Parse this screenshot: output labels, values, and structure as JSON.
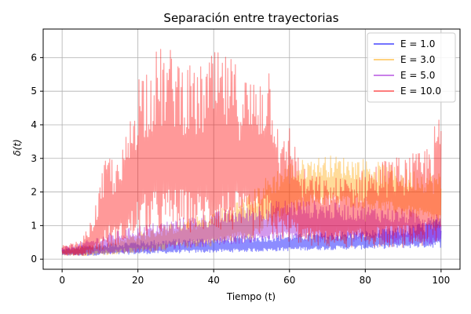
{
  "chart_data": {
    "type": "line",
    "title": "Separación entre trayectorias",
    "xlabel": "Tiempo (t)",
    "ylabel": "δ(t)",
    "xlim": [
      -5,
      105
    ],
    "ylim": [
      -0.3,
      6.85
    ],
    "xticks": [
      0,
      20,
      40,
      60,
      80,
      100
    ],
    "yticks": [
      0,
      1,
      2,
      3,
      4,
      5,
      6
    ],
    "grid": true,
    "legend_position": "top-right",
    "series": [
      {
        "name": "E = 1.0",
        "color": "#0000ff",
        "opacity": 0.45,
        "envelope": {
          "t": [
            0,
            5,
            10,
            20,
            30,
            40,
            50,
            60,
            70,
            80,
            90,
            100
          ],
          "lower": [
            0.12,
            0.1,
            0.12,
            0.15,
            0.18,
            0.2,
            0.22,
            0.25,
            0.28,
            0.3,
            0.33,
            0.35
          ],
          "upper": [
            0.3,
            0.4,
            0.45,
            0.55,
            0.6,
            0.65,
            0.7,
            0.75,
            0.8,
            0.85,
            0.95,
            1.25
          ]
        }
      },
      {
        "name": "E = 3.0",
        "color": "#ffa500",
        "opacity": 0.4,
        "envelope": {
          "t": [
            0,
            5,
            10,
            20,
            30,
            40,
            50,
            55,
            60,
            65,
            70,
            80,
            90,
            100
          ],
          "lower": [
            0.12,
            0.1,
            0.12,
            0.18,
            0.3,
            0.4,
            0.6,
            0.9,
            1.3,
            1.6,
            1.6,
            1.5,
            1.3,
            1.0
          ],
          "upper": [
            0.3,
            0.4,
            0.5,
            0.8,
            1.1,
            1.4,
            2.0,
            2.6,
            2.9,
            3.0,
            3.1,
            3.0,
            2.7,
            2.6
          ]
        }
      },
      {
        "name": "E = 5.0",
        "color": "#9400d3",
        "opacity": 0.4,
        "envelope": {
          "t": [
            0,
            5,
            10,
            20,
            30,
            40,
            50,
            60,
            70,
            80,
            90,
            100
          ],
          "lower": [
            0.12,
            0.1,
            0.15,
            0.2,
            0.3,
            0.4,
            0.5,
            0.55,
            0.5,
            0.5,
            0.45,
            0.4
          ],
          "upper": [
            0.35,
            0.5,
            0.7,
            1.0,
            1.2,
            1.4,
            1.6,
            1.8,
            1.7,
            1.6,
            1.5,
            1.4
          ]
        }
      },
      {
        "name": "E = 10.0",
        "color": "#ff0000",
        "opacity": 0.4,
        "envelope": {
          "t": [
            0,
            5,
            8,
            12,
            15,
            18,
            20,
            25,
            30,
            35,
            40,
            45,
            50,
            55,
            58,
            60,
            63,
            65,
            70,
            75,
            80,
            85,
            90,
            95,
            100
          ],
          "lower": [
            0.12,
            0.1,
            0.15,
            0.3,
            0.45,
            0.5,
            0.6,
            0.7,
            0.8,
            0.8,
            0.8,
            0.8,
            0.7,
            0.6,
            0.55,
            0.5,
            0.45,
            0.4,
            0.35,
            0.35,
            0.35,
            0.35,
            0.35,
            0.35,
            0.35
          ],
          "upper": [
            0.4,
            0.55,
            1.2,
            3.3,
            2.8,
            4.3,
            5.7,
            6.3,
            6.3,
            5.6,
            6.2,
            6.0,
            5.4,
            6.1,
            3.4,
            4.2,
            2.8,
            2.6,
            2.4,
            2.5,
            2.7,
            3.0,
            3.1,
            3.2,
            4.4
          ]
        }
      }
    ]
  }
}
